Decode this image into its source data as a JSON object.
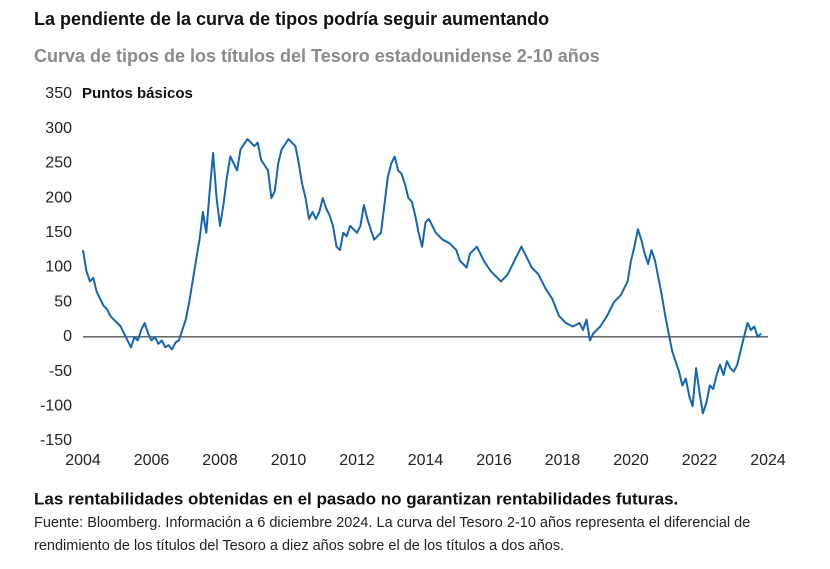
{
  "chart_data": {
    "type": "line",
    "title": "La pendiente de la curva de tipos podría seguir aumentando",
    "subtitle": "Curva de tipos de los títulos del Tesoro estadounidense 2-10 años",
    "ylabel": "Puntos básicos",
    "footnote_bold": "Las rentabilidades obtenidas en el pasado no garantizan rentabilidades futuras.",
    "footnote": "Fuente: Bloomberg. Información a 6 diciembre 2024. La curva del Tesoro 2-10 años representa el diferencial de rendimiento de los títulos del Tesoro a diez años sobre el de los títulos a dos años.",
    "xlim": [
      2004,
      2024
    ],
    "xticks": [
      2004,
      2006,
      2008,
      2010,
      2012,
      2014,
      2016,
      2018,
      2020,
      2022,
      2024
    ],
    "ylim": [
      -150,
      350
    ],
    "yticks": [
      350,
      300,
      250,
      200,
      150,
      100,
      50,
      0,
      -50,
      -100,
      -150
    ],
    "zero_line": true,
    "series": [
      {
        "color": "#1565b0",
        "x": [
          2004.0,
          2004.1,
          2004.2,
          2004.3,
          2004.4,
          2004.5,
          2004.6,
          2004.7,
          2004.8,
          2004.9,
          2005.0,
          2005.1,
          2005.2,
          2005.3,
          2005.4,
          2005.5,
          2005.6,
          2005.7,
          2005.8,
          2005.9,
          2006.0,
          2006.1,
          2006.2,
          2006.3,
          2006.4,
          2006.5,
          2006.6,
          2006.7,
          2006.8,
          2006.9,
          2007.0,
          2007.1,
          2007.2,
          2007.3,
          2007.4,
          2007.5,
          2007.6,
          2007.7,
          2007.8,
          2007.9,
          2008.0,
          2008.1,
          2008.2,
          2008.3,
          2008.4,
          2008.5,
          2008.6,
          2008.8,
          2009.0,
          2009.1,
          2009.2,
          2009.4,
          2009.5,
          2009.6,
          2009.7,
          2009.8,
          2010.0,
          2010.1,
          2010.2,
          2010.3,
          2010.4,
          2010.5,
          2010.6,
          2010.7,
          2010.8,
          2010.9,
          2011.0,
          2011.1,
          2011.2,
          2011.3,
          2011.4,
          2011.5,
          2011.6,
          2011.7,
          2011.8,
          2011.9,
          2012.0,
          2012.1,
          2012.2,
          2012.3,
          2012.5,
          2012.7,
          2012.8,
          2012.9,
          2013.0,
          2013.1,
          2013.2,
          2013.3,
          2013.4,
          2013.5,
          2013.6,
          2013.7,
          2013.8,
          2013.9,
          2014.0,
          2014.1,
          2014.3,
          2014.5,
          2014.7,
          2014.9,
          2015.0,
          2015.2,
          2015.3,
          2015.5,
          2015.7,
          2015.9,
          2016.0,
          2016.2,
          2016.4,
          2016.6,
          2016.8,
          2016.9,
          2017.1,
          2017.3,
          2017.5,
          2017.7,
          2017.9,
          2018.1,
          2018.3,
          2018.5,
          2018.6,
          2018.7,
          2018.8,
          2018.9,
          2019.1,
          2019.3,
          2019.5,
          2019.7,
          2019.9,
          2020.0,
          2020.1,
          2020.2,
          2020.3,
          2020.4,
          2020.5,
          2020.6,
          2020.7,
          2020.8,
          2020.9,
          2021.0,
          2021.1,
          2021.2,
          2021.3,
          2021.4,
          2021.5,
          2021.6,
          2021.7,
          2021.8,
          2021.9,
          2022.0,
          2022.1,
          2022.2,
          2022.3,
          2022.4,
          2022.5,
          2022.6,
          2022.7,
          2022.8,
          2022.9,
          2023.0,
          2023.1,
          2023.2,
          2023.3,
          2023.4,
          2023.5,
          2023.6,
          2023.7,
          2023.8
        ],
        "values": [
          125,
          95,
          80,
          85,
          65,
          55,
          45,
          40,
          30,
          25,
          20,
          15,
          5,
          -5,
          -15,
          0,
          -5,
          10,
          20,
          5,
          -5,
          0,
          -10,
          -5,
          -15,
          -12,
          -18,
          -8,
          -5,
          10,
          25,
          50,
          80,
          110,
          140,
          180,
          150,
          210,
          265,
          200,
          160,
          190,
          230,
          260,
          250,
          240,
          270,
          285,
          275,
          280,
          255,
          240,
          200,
          210,
          250,
          270,
          285,
          280,
          275,
          250,
          220,
          200,
          170,
          180,
          170,
          180,
          200,
          185,
          175,
          160,
          130,
          125,
          150,
          145,
          160,
          155,
          150,
          160,
          190,
          170,
          140,
          150,
          190,
          230,
          250,
          260,
          240,
          235,
          220,
          200,
          195,
          175,
          150,
          130,
          165,
          170,
          150,
          140,
          135,
          125,
          110,
          100,
          120,
          130,
          110,
          95,
          90,
          80,
          90,
          110,
          130,
          120,
          100,
          90,
          70,
          55,
          30,
          20,
          15,
          20,
          10,
          25,
          -5,
          5,
          15,
          30,
          50,
          60,
          80,
          110,
          130,
          155,
          140,
          120,
          105,
          125,
          110,
          85,
          60,
          30,
          5,
          -20,
          -35,
          -50,
          -70,
          -60,
          -85,
          -100,
          -45,
          -80,
          -110,
          -95,
          -70,
          -75,
          -55,
          -40,
          -55,
          -35,
          -45,
          -50,
          -40,
          -20,
          0,
          20,
          10,
          15,
          0,
          5
        ]
      }
    ]
  }
}
